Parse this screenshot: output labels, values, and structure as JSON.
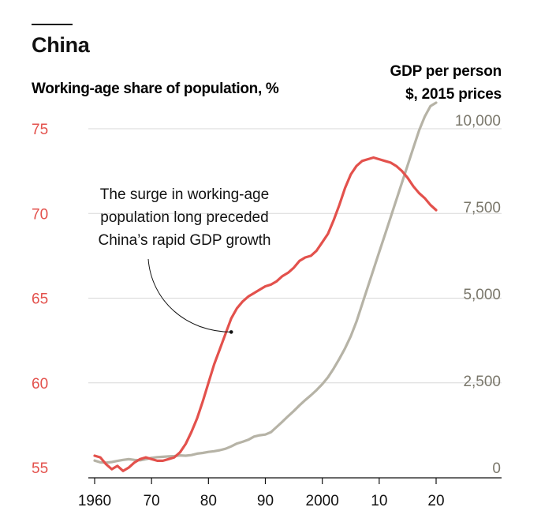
{
  "chart_data": {
    "type": "line",
    "title": "China",
    "colors": {
      "working_age": "#e3514c",
      "gdp": "#b6b3a6",
      "right_axis_text": "#7a776b",
      "grid": "#d8d8d8",
      "text": "#121212"
    },
    "left_axis": {
      "label": "Working-age share of population, %",
      "range": [
        55,
        75
      ],
      "ticks": [
        55,
        60,
        65,
        70,
        75
      ],
      "tick_labels": [
        "55",
        "60",
        "65",
        "70",
        "75"
      ]
    },
    "right_axis": {
      "label_line1": "GDP per person",
      "label_line2": "$, 2015 prices",
      "range": [
        0,
        10000
      ],
      "ticks": [
        0,
        2500,
        5000,
        7500,
        10000
      ],
      "tick_labels": [
        "0",
        "2,500",
        "5,000",
        "7,500",
        "10,000"
      ]
    },
    "x_axis": {
      "range": [
        1953,
        2023
      ],
      "ticks": [
        1960,
        1970,
        1980,
        1990,
        2000,
        2010,
        2020
      ],
      "tick_labels": [
        "1960",
        "70",
        "80",
        "90",
        "2000",
        "10",
        "20"
      ]
    },
    "series": [
      {
        "key": "working_age",
        "axis": "left",
        "x": [
          1960,
          1961,
          1962,
          1963,
          1964,
          1965,
          1966,
          1967,
          1968,
          1969,
          1970,
          1971,
          1972,
          1973,
          1974,
          1975,
          1976,
          1977,
          1978,
          1979,
          1980,
          1981,
          1982,
          1983,
          1984,
          1985,
          1986,
          1987,
          1988,
          1989,
          1990,
          1991,
          1992,
          1993,
          1994,
          1995,
          1996,
          1997,
          1998,
          1999,
          2000,
          2001,
          2002,
          2003,
          2004,
          2005,
          2006,
          2007,
          2008,
          2009,
          2010,
          2011,
          2012,
          2013,
          2014,
          2015,
          2016,
          2017,
          2018,
          2019,
          2020
        ],
        "y": [
          55.7,
          55.6,
          55.2,
          54.9,
          55.1,
          54.8,
          55.0,
          55.3,
          55.5,
          55.6,
          55.5,
          55.4,
          55.4,
          55.5,
          55.6,
          55.9,
          56.4,
          57.1,
          57.9,
          58.9,
          60.0,
          61.1,
          62.0,
          62.9,
          63.8,
          64.4,
          64.8,
          65.1,
          65.3,
          65.5,
          65.7,
          65.8,
          66.0,
          66.3,
          66.5,
          66.8,
          67.2,
          67.4,
          67.5,
          67.8,
          68.3,
          68.8,
          69.6,
          70.5,
          71.5,
          72.3,
          72.8,
          73.1,
          73.2,
          73.3,
          73.2,
          73.1,
          73.0,
          72.8,
          72.5,
          72.1,
          71.6,
          71.2,
          70.9,
          70.5,
          70.2
        ]
      },
      {
        "key": "gdp",
        "axis": "right",
        "x": [
          1960,
          1961,
          1962,
          1963,
          1964,
          1965,
          1966,
          1967,
          1968,
          1969,
          1970,
          1971,
          1972,
          1973,
          1974,
          1975,
          1976,
          1977,
          1978,
          1979,
          1980,
          1981,
          1982,
          1983,
          1984,
          1985,
          1986,
          1987,
          1988,
          1989,
          1990,
          1991,
          1992,
          1993,
          1994,
          1995,
          1996,
          1997,
          1998,
          1999,
          2000,
          2001,
          2002,
          2003,
          2004,
          2005,
          2006,
          2007,
          2008,
          2009,
          2010,
          2011,
          2012,
          2013,
          2014,
          2015,
          2016,
          2017,
          2018,
          2019,
          2020
        ],
        "y": [
          200,
          150,
          140,
          160,
          190,
          220,
          240,
          220,
          210,
          240,
          280,
          300,
          310,
          320,
          330,
          350,
          340,
          360,
          400,
          420,
          450,
          470,
          500,
          540,
          610,
          690,
          740,
          800,
          890,
          930,
          950,
          1020,
          1170,
          1320,
          1480,
          1630,
          1790,
          1940,
          2080,
          2230,
          2400,
          2600,
          2850,
          3130,
          3430,
          3780,
          4200,
          4700,
          5200,
          5700,
          6200,
          6700,
          7200,
          7700,
          8200,
          8700,
          9200,
          9700,
          10100,
          10400,
          10500
        ]
      }
    ],
    "annotation": {
      "lines": [
        "The surge in working-age",
        "population long preceded",
        "China’s rapid GDP growth"
      ],
      "point_year": 1984,
      "point_value": 63.0
    }
  }
}
